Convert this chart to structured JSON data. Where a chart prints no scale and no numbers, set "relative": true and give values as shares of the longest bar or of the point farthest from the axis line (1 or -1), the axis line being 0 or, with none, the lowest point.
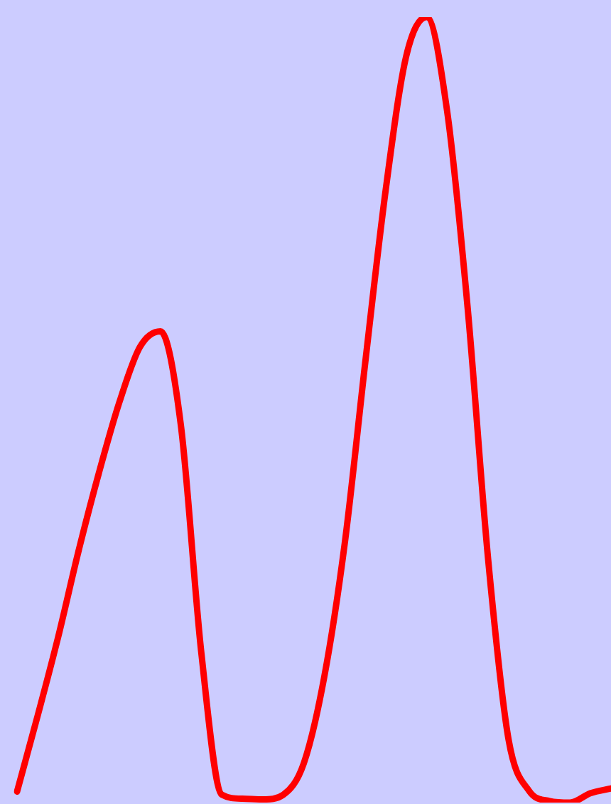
{
  "chart_data": {
    "type": "line",
    "relative": true,
    "categories": [
      null,
      null,
      null,
      null,
      null,
      null,
      null,
      null,
      null,
      null,
      null,
      null,
      null,
      null,
      null,
      null,
      null,
      null,
      null,
      null,
      null,
      null,
      null,
      null,
      null,
      null,
      null,
      null,
      null,
      null
    ],
    "series": [
      {
        "color": "#ff0000",
        "values": [
          0.014,
          0.11,
          0.21,
          0.32,
          0.42,
          0.51,
          0.58,
          0.6,
          0.48,
          0.19,
          0.01,
          0.005,
          0.004,
          0.01,
          0.05,
          0.16,
          0.33,
          0.56,
          0.78,
          0.95,
          1.0,
          0.88,
          0.63,
          0.31,
          0.08,
          0.015,
          0.002,
          0,
          0.012,
          0.018
        ]
      }
    ],
    "grid": false,
    "legend": false,
    "marker": "none",
    "line_style": "solid"
  }
}
